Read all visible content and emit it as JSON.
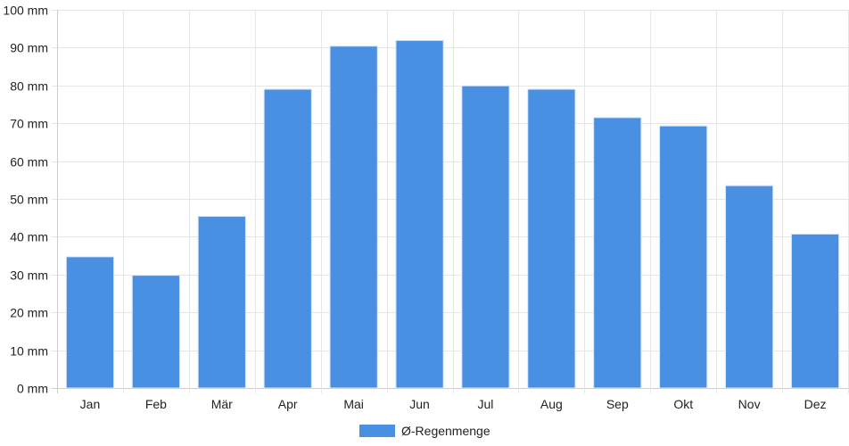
{
  "chart_data": {
    "type": "bar",
    "categories": [
      "Jan",
      "Feb",
      "Mär",
      "Apr",
      "Mai",
      "Jun",
      "Jul",
      "Aug",
      "Sep",
      "Okt",
      "Nov",
      "Dez"
    ],
    "series": [
      {
        "name": "Ø-Regenmenge",
        "color": "#4a90e2",
        "values": [
          34.7,
          29.8,
          45.4,
          79.0,
          90.4,
          91.9,
          79.9,
          79.0,
          71.5,
          69.3,
          53.5,
          40.7
        ]
      }
    ],
    "y_ticks": [
      0,
      10,
      20,
      30,
      40,
      50,
      60,
      70,
      80,
      90,
      100
    ],
    "y_unit": "mm",
    "ylim": [
      0,
      100
    ],
    "grid": true,
    "legend_position": "bottom-center",
    "colors": {
      "grid": "#e6e6e6",
      "axis": "#cccccc",
      "bar_border": "#d8e6f7"
    }
  }
}
